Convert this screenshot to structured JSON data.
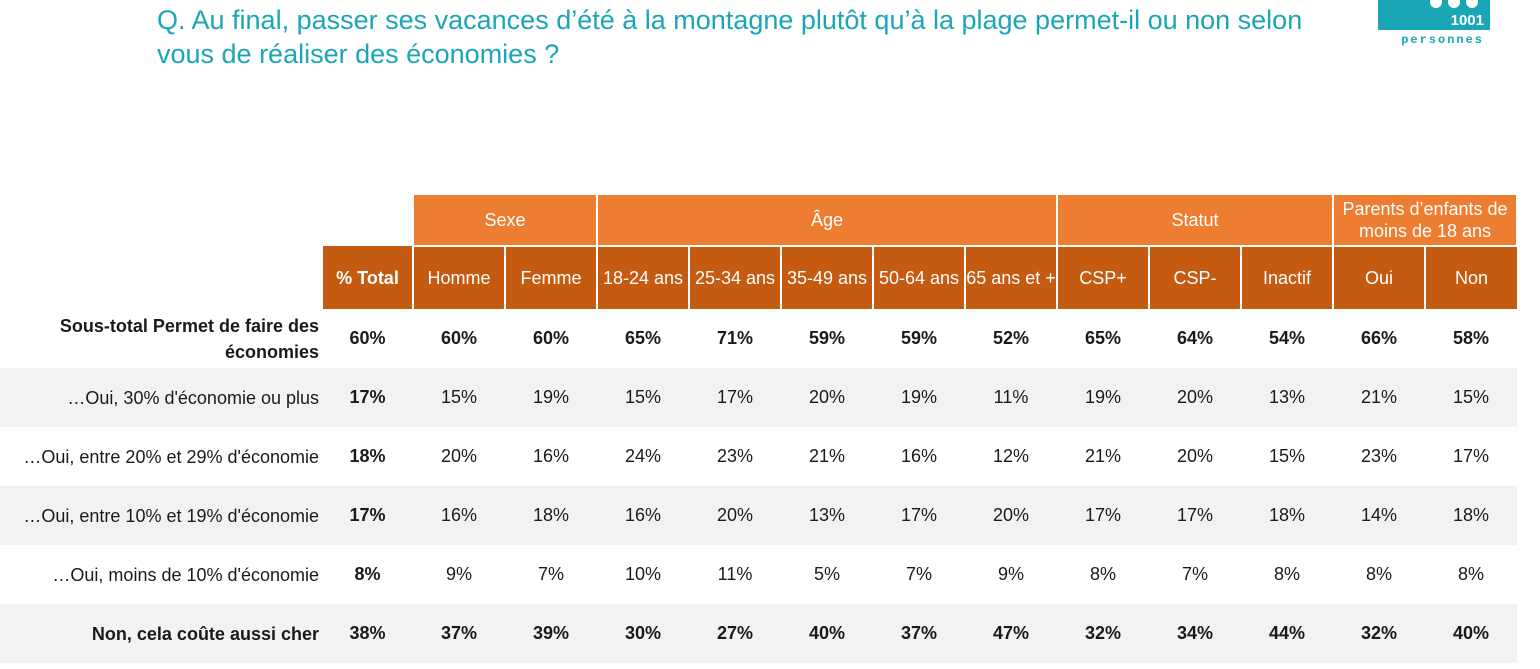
{
  "question": "Q. Au final, passer ses vacances d’été à la montagne plutôt qu’à la plage permet-il ou non selon vous de réaliser des économies ?",
  "logo": {
    "number": "1001",
    "text": "personnes"
  },
  "colors": {
    "accent": "#1aa6b7",
    "header_light": "#ed7d31",
    "header_dark": "#c55a11",
    "row_shade": "#f2f2f2"
  },
  "groups": [
    "Sexe",
    "Âge",
    "Statut",
    "Parents d’enfants de moins de 18 ans"
  ],
  "columns": [
    "% Total",
    "Homme",
    "Femme",
    "18-24 ans",
    "25-34 ans",
    "35-49 ans",
    "50-64 ans",
    "65 ans et +",
    "CSP+",
    "CSP-",
    "Inactif",
    "Oui",
    "Non"
  ],
  "rows": [
    {
      "label": "Sous-total Permet de faire des économies",
      "values": [
        "60%",
        "60%",
        "60%",
        "65%",
        "71%",
        "59%",
        "59%",
        "52%",
        "65%",
        "64%",
        "54%",
        "66%",
        "58%"
      ]
    },
    {
      "label": "…Oui, 30% d'économie ou plus",
      "values": [
        "17%",
        "15%",
        "19%",
        "15%",
        "17%",
        "20%",
        "19%",
        "11%",
        "19%",
        "20%",
        "13%",
        "21%",
        "15%"
      ]
    },
    {
      "label": "…Oui, entre 20% et 29% d'économie",
      "values": [
        "18%",
        "20%",
        "16%",
        "24%",
        "23%",
        "21%",
        "16%",
        "12%",
        "21%",
        "20%",
        "15%",
        "23%",
        "17%"
      ]
    },
    {
      "label": "…Oui, entre 10% et 19% d'économie",
      "values": [
        "17%",
        "16%",
        "18%",
        "16%",
        "20%",
        "13%",
        "17%",
        "20%",
        "17%",
        "17%",
        "18%",
        "14%",
        "18%"
      ]
    },
    {
      "label": "…Oui, moins de 10% d'économie",
      "values": [
        "8%",
        "9%",
        "7%",
        "10%",
        "11%",
        "5%",
        "7%",
        "9%",
        "8%",
        "7%",
        "8%",
        "8%",
        "8%"
      ]
    },
    {
      "label": "Non, cela coûte aussi cher",
      "values": [
        "38%",
        "37%",
        "39%",
        "30%",
        "27%",
        "40%",
        "37%",
        "47%",
        "32%",
        "34%",
        "44%",
        "32%",
        "40%"
      ]
    }
  ]
}
